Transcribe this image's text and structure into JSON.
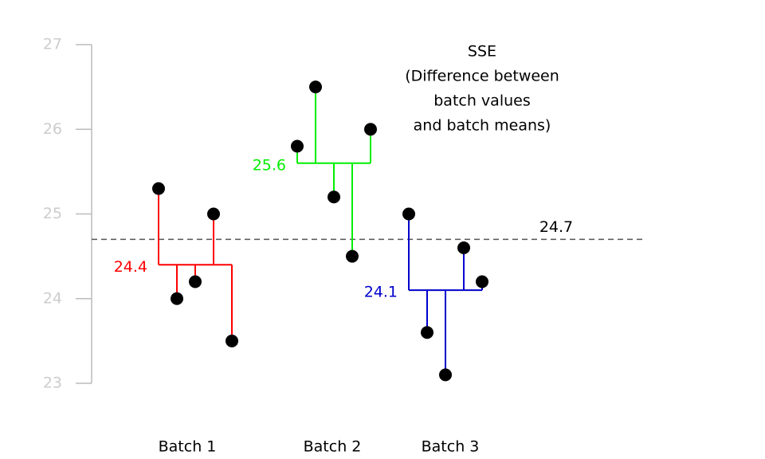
{
  "chart_data": {
    "type": "strip",
    "annotation": [
      "SSE",
      "(Difference between",
      "batch values",
      "and batch means)"
    ],
    "ylim": [
      23,
      27
    ],
    "yticks": [
      23,
      24,
      25,
      26,
      27
    ],
    "grand_mean": 24.7,
    "series": [
      {
        "name": "Batch 1",
        "color": "#ff0000",
        "values": [
          25.3,
          24.0,
          24.2,
          25.0,
          23.5
        ],
        "mean": 24.4
      },
      {
        "name": "Batch 2",
        "color": "#00ee00",
        "values": [
          25.8,
          26.5,
          25.2,
          24.5,
          26.0
        ],
        "mean": 25.6
      },
      {
        "name": "Batch 3",
        "color": "#0000cc",
        "values": [
          25.0,
          23.6,
          23.1,
          24.6,
          24.2
        ],
        "mean": 24.1
      }
    ]
  }
}
